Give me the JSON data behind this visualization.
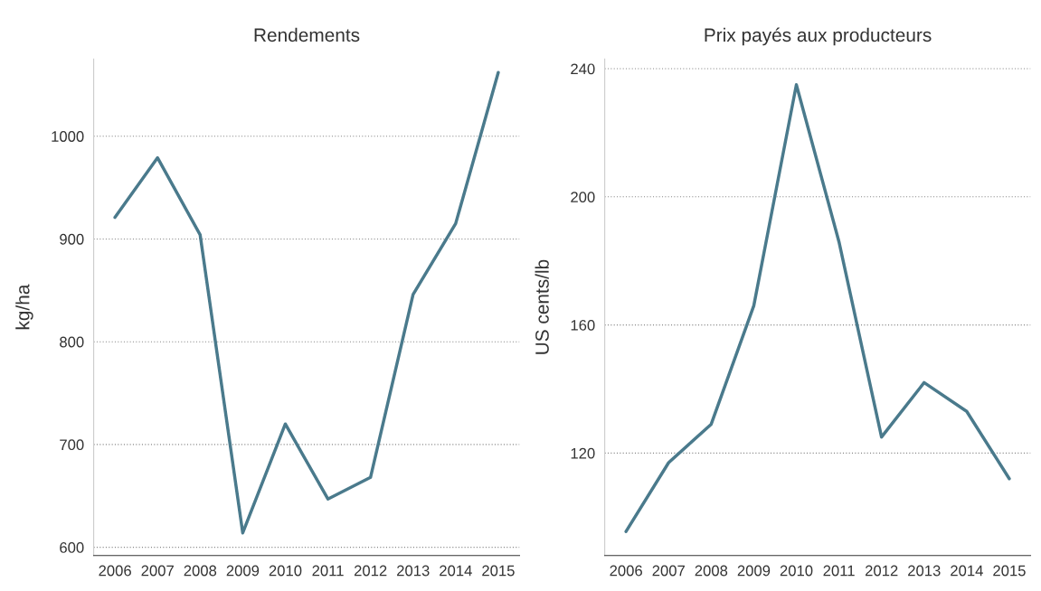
{
  "chart_data": [
    {
      "type": "line",
      "title": "Rendements",
      "ylabel": "kg/ha",
      "categories": [
        "2006",
        "2007",
        "2008",
        "2009",
        "2010",
        "2011",
        "2012",
        "2013",
        "2014",
        "2015"
      ],
      "series": [
        {
          "color": "#4a7a8c",
          "values": [
            921,
            979,
            904,
            614,
            720,
            647,
            668,
            846,
            915,
            1062
          ]
        }
      ],
      "ylim": [
        592,
        1075
      ],
      "yticks": [
        600,
        700,
        800,
        900,
        1000
      ],
      "grid": "y"
    },
    {
      "type": "line",
      "title": "Prix payés aux producteurs",
      "ylabel": "US cents/lb",
      "categories": [
        "2006",
        "2007",
        "2008",
        "2009",
        "2010",
        "2011",
        "2012",
        "2013",
        "2014",
        "2015"
      ],
      "series": [
        {
          "color": "#4a7a8c",
          "values": [
            95.5,
            117,
            129,
            166,
            235,
            186,
            125,
            142,
            133,
            112
          ]
        }
      ],
      "ylim": [
        88,
        243
      ],
      "yticks": [
        120,
        160,
        200,
        240
      ],
      "grid": "y"
    }
  ]
}
